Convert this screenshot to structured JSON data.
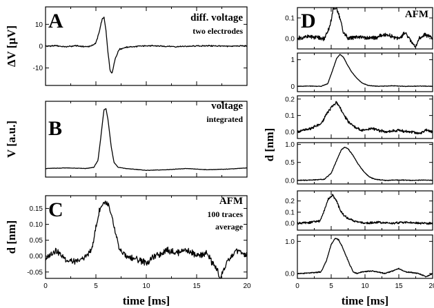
{
  "chart_data": [
    {
      "id": "A",
      "type": "line",
      "panel_label": "A",
      "annotation": [
        "diff. voltage",
        "two electrodes"
      ],
      "ylabel": "ΔV [µV]",
      "xlabel": "",
      "xlim": [
        0,
        20
      ],
      "ylim": [
        -18,
        18
      ],
      "yticks": [
        -10,
        0,
        10
      ],
      "ytick_labels": [
        "-10",
        "0",
        "10"
      ],
      "series": [
        {
          "x": [
            0,
            1,
            2,
            3,
            4,
            4.5,
            5,
            5.3,
            5.6,
            5.8,
            6.0,
            6.2,
            6.4,
            6.6,
            6.9,
            7.3,
            8,
            10,
            13,
            16,
            18,
            20
          ],
          "y": [
            0,
            0.2,
            -0.3,
            0.2,
            -0.3,
            0,
            1.5,
            6,
            12,
            13.5,
            7,
            -3,
            -11,
            -12.5,
            -6,
            -1.5,
            -0.5,
            0.2,
            -0.2,
            0.2,
            0,
            0.1
          ]
        }
      ]
    },
    {
      "id": "B",
      "type": "line",
      "panel_label": "B",
      "annotation": [
        "voltage",
        "integrated"
      ],
      "ylabel": "V [a.u.]",
      "xlabel": "",
      "xlim": [
        0,
        20
      ],
      "ylim": [
        -0.12,
        1.12
      ],
      "yticks": [],
      "ytick_labels": [],
      "series": [
        {
          "x": [
            0,
            2,
            4,
            4.8,
            5.2,
            5.5,
            5.8,
            6.0,
            6.2,
            6.5,
            6.8,
            7.2,
            8,
            10,
            12,
            14,
            16,
            18,
            20
          ],
          "y": [
            0.02,
            0.03,
            0.02,
            0.04,
            0.15,
            0.55,
            0.98,
            1.0,
            0.82,
            0.4,
            0.12,
            0.04,
            0.02,
            -0.01,
            0.0,
            0.02,
            0.0,
            0.01,
            0.03
          ]
        }
      ]
    },
    {
      "id": "C",
      "type": "line",
      "panel_label": "C",
      "annotation": [
        "AFM",
        "100 traces",
        "average"
      ],
      "ylabel": "d [nm]",
      "xlabel": "time [ms]",
      "xlim": [
        0,
        20
      ],
      "ylim": [
        -0.07,
        0.19
      ],
      "yticks": [
        -0.05,
        0,
        0.05,
        0.1,
        0.15
      ],
      "ytick_labels": [
        "-0.05",
        "0.00",
        "0.05",
        "0.10",
        "0.15"
      ],
      "xticks": [
        0,
        5,
        10,
        15,
        20
      ],
      "xtick_labels": [
        "0",
        "5",
        "10",
        "15",
        "20"
      ],
      "series": [
        {
          "x": [
            0,
            1,
            2,
            3,
            4,
            4.6,
            5.0,
            5.4,
            5.8,
            6.2,
            6.6,
            7.0,
            7.4,
            8,
            9,
            10,
            11,
            12,
            13,
            14,
            15,
            16,
            16.5,
            17,
            17.3,
            18,
            19,
            20
          ],
          "y": [
            -0.01,
            0.02,
            -0.01,
            -0.02,
            0.0,
            0.02,
            0.09,
            0.15,
            0.17,
            0.16,
            0.12,
            0.06,
            0.02,
            0.0,
            -0.01,
            -0.02,
            0.0,
            0.02,
            0.01,
            0.02,
            0.0,
            0.01,
            -0.02,
            -0.04,
            -0.07,
            -0.02,
            0.02,
            0.0
          ]
        }
      ]
    },
    {
      "id": "D1",
      "type": "line",
      "panel_label": "D",
      "annotation": [
        "AFM"
      ],
      "ylabel": "",
      "xlabel": "",
      "xlim": [
        0,
        20
      ],
      "ylim": [
        -0.05,
        0.15
      ],
      "yticks": [
        0,
        0.1
      ],
      "ytick_labels": [
        "0.0",
        "0.1"
      ],
      "series": [
        {
          "x": [
            0,
            2,
            4,
            4.8,
            5.3,
            5.8,
            6.3,
            6.8,
            7.5,
            9,
            11,
            13,
            15,
            16,
            17,
            17.5,
            18,
            19,
            20
          ],
          "y": [
            0.0,
            0.01,
            0.0,
            0.06,
            0.14,
            0.15,
            0.1,
            0.03,
            0.0,
            0.01,
            0.0,
            0.02,
            0.0,
            0.03,
            -0.02,
            -0.04,
            0.0,
            0.02,
            0.0
          ]
        }
      ]
    },
    {
      "id": "D2",
      "type": "line",
      "panel_label": "",
      "annotation": [],
      "ylabel": "",
      "xlabel": "",
      "xlim": [
        0,
        20
      ],
      "ylim": [
        -0.2,
        1.25
      ],
      "yticks": [
        0,
        1
      ],
      "ytick_labels": [
        "0",
        "1"
      ],
      "series": [
        {
          "x": [
            0,
            2,
            3.5,
            4.5,
            5.2,
            5.8,
            6.3,
            6.8,
            7.3,
            8,
            8.8,
            9.6,
            10.5,
            12,
            14,
            16,
            18,
            20
          ],
          "y": [
            0.0,
            0.01,
            0.0,
            0.1,
            0.6,
            1.05,
            1.2,
            1.1,
            0.85,
            0.55,
            0.3,
            0.12,
            0.03,
            0.0,
            0.02,
            0.0,
            0.01,
            0.0
          ]
        }
      ]
    },
    {
      "id": "D3",
      "type": "line",
      "panel_label": "",
      "annotation": [],
      "ylabel": "",
      "xlabel": "",
      "xlim": [
        0,
        20
      ],
      "ylim": [
        -0.04,
        0.22
      ],
      "yticks": [
        0,
        0.1,
        0.2
      ],
      "ytick_labels": [
        "0.0",
        "0.1",
        "0.2"
      ],
      "series": [
        {
          "x": [
            0,
            2,
            3.5,
            4.5,
            5.2,
            5.8,
            6.3,
            6.9,
            7.6,
            8.5,
            9.5,
            11,
            13,
            15,
            17,
            18,
            19,
            20
          ],
          "y": [
            0.0,
            0.02,
            0.05,
            0.12,
            0.16,
            0.18,
            0.15,
            0.1,
            0.06,
            0.03,
            0.01,
            0.02,
            0.0,
            0.01,
            0.0,
            -0.01,
            0.01,
            0.0
          ]
        }
      ]
    },
    {
      "id": "D4",
      "type": "line",
      "panel_label": "",
      "annotation": [],
      "ylabel": "",
      "xlabel": "",
      "xlim": [
        0,
        20
      ],
      "ylim": [
        -0.1,
        1.05
      ],
      "yticks": [
        0,
        0.5,
        1
      ],
      "ytick_labels": [
        "0.0",
        "0.5",
        "1.0"
      ],
      "series": [
        {
          "x": [
            0,
            2,
            4,
            5,
            5.8,
            6.5,
            7.0,
            7.5,
            8.2,
            9,
            9.8,
            10.6,
            11.5,
            13,
            15,
            17,
            19,
            20
          ],
          "y": [
            0.0,
            0.01,
            0.03,
            0.2,
            0.55,
            0.85,
            0.92,
            0.88,
            0.7,
            0.45,
            0.25,
            0.1,
            0.03,
            0.0,
            0.01,
            0.0,
            0.01,
            0.0
          ]
        }
      ]
    },
    {
      "id": "D5",
      "type": "line",
      "panel_label": "",
      "annotation": [],
      "ylabel": "",
      "xlabel": "",
      "xlim": [
        0,
        20
      ],
      "ylim": [
        -0.06,
        0.29
      ],
      "yticks": [
        0,
        0.1,
        0.2
      ],
      "ytick_labels": [
        "0.0",
        "0.1",
        "0.2"
      ],
      "series": [
        {
          "x": [
            0,
            2,
            3.3,
            4.0,
            4.6,
            5.2,
            5.8,
            6.3,
            6.9,
            7.6,
            8.5,
            10,
            12,
            14,
            16,
            18,
            20
          ],
          "y": [
            0.0,
            0.01,
            0.02,
            0.12,
            0.22,
            0.25,
            0.2,
            0.12,
            0.07,
            0.04,
            0.02,
            0.0,
            0.01,
            0.0,
            0.01,
            0.0,
            0.0
          ]
        }
      ]
    },
    {
      "id": "D6",
      "type": "line",
      "panel_label": "",
      "annotation": [],
      "ylabel": "",
      "xlabel": "time [ms]",
      "xlim": [
        0,
        20
      ],
      "ylim": [
        -0.15,
        1.2
      ],
      "yticks": [
        0,
        1
      ],
      "ytick_labels": [
        "0.0",
        "1.0"
      ],
      "xticks": [
        0,
        5,
        10,
        15,
        20
      ],
      "xtick_labels": [
        "0",
        "5",
        "10",
        "15",
        "20"
      ],
      "series": [
        {
          "x": [
            0,
            2,
            3.5,
            4.3,
            5.0,
            5.6,
            6.1,
            6.6,
            7.2,
            7.8,
            8.3,
            8.8,
            9.5,
            11,
            13,
            15,
            16,
            18,
            19,
            20
          ],
          "y": [
            0.0,
            0.02,
            0.05,
            0.4,
            0.9,
            1.1,
            1.05,
            0.85,
            0.55,
            0.25,
            0.05,
            0.0,
            0.05,
            0.08,
            0.0,
            0.15,
            0.05,
            0.0,
            -0.1,
            0.0
          ]
        }
      ]
    }
  ],
  "left_ylabel_D": "d [nm]"
}
